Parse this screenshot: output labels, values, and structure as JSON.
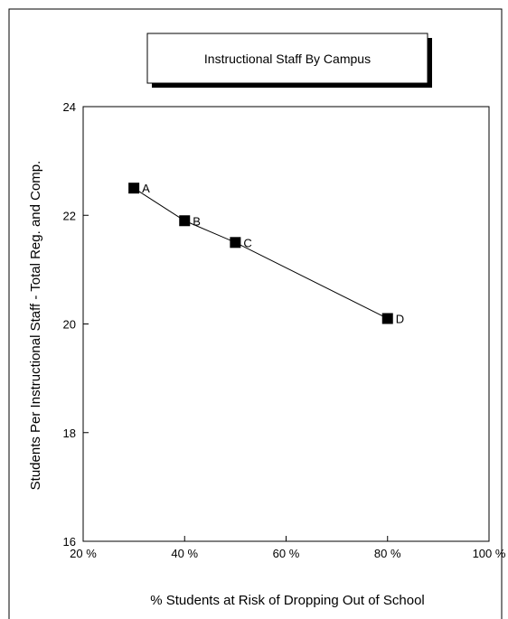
{
  "chart_data": {
    "type": "line",
    "title": "Instructional Staff By Campus",
    "xlabel": "% Students at Risk of Dropping Out of School",
    "ylabel": "Students Per Instructional Staff - Total Reg. and Comp.",
    "xlim": [
      20,
      100
    ],
    "ylim": [
      16,
      24
    ],
    "x_ticks": [
      20,
      40,
      60,
      80,
      100
    ],
    "x_tick_labels": [
      "20 %",
      "40 %",
      "60 %",
      "80 %",
      "100 %"
    ],
    "y_ticks": [
      16,
      18,
      20,
      22,
      24
    ],
    "y_tick_labels": [
      "16",
      "18",
      "20",
      "22",
      "24"
    ],
    "grid": false,
    "legend": "none",
    "marker": "square",
    "line_color": "#000000",
    "marker_color": "#000000",
    "points": [
      {
        "label": "A",
        "x": 30,
        "y": 22.5
      },
      {
        "label": "B",
        "x": 40,
        "y": 21.9
      },
      {
        "label": "C",
        "x": 50,
        "y": 21.5
      },
      {
        "label": "D",
        "x": 80,
        "y": 20.1
      }
    ]
  }
}
